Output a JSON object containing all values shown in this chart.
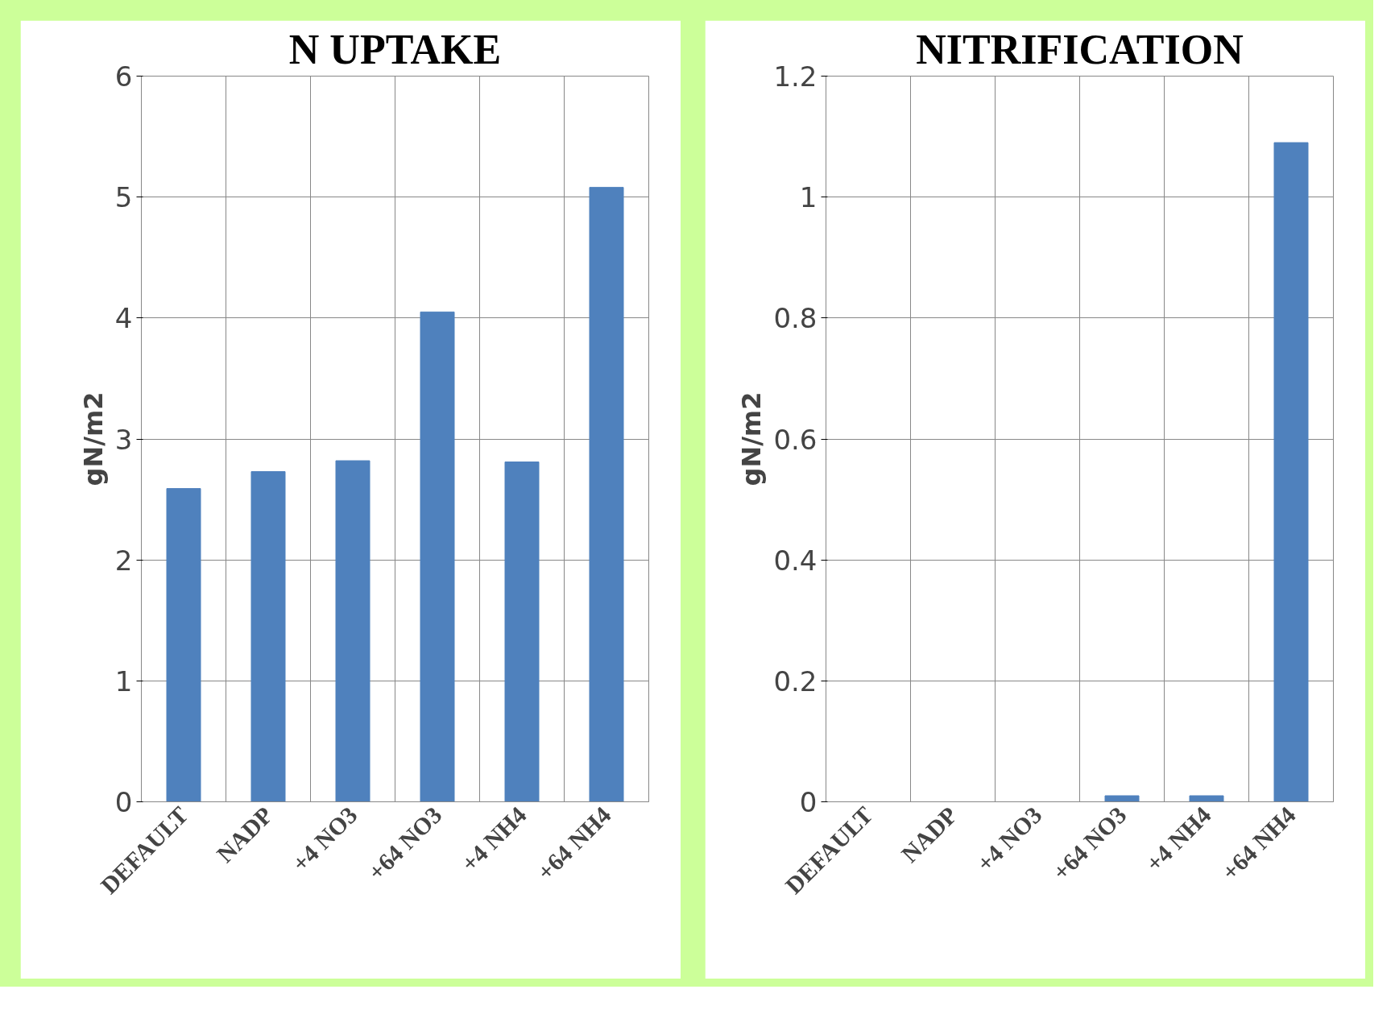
{
  "chart_data": [
    {
      "type": "bar",
      "title": "N UPTAKE",
      "ylabel": "gN/m2",
      "categories": [
        "DEFAULT",
        "NADP",
        "+4 NO3",
        "+64 NO3",
        "+4 NH4",
        "+64 NH4"
      ],
      "values": [
        2.59,
        2.73,
        2.82,
        4.05,
        2.81,
        5.08
      ],
      "color": "#4f81bd",
      "ylim": [
        0,
        6
      ],
      "yticks": [
        0,
        1,
        2,
        3,
        4,
        5,
        6
      ],
      "grid": true
    },
    {
      "type": "bar",
      "title": "NITRIFICATION",
      "ylabel": "gN/m2",
      "categories": [
        "DEFAULT",
        "NADP",
        "+4 NO3",
        "+64 NO3",
        "+4 NH4",
        "+64 NH4"
      ],
      "values": [
        0,
        0,
        0,
        0.01,
        0.01,
        1.09
      ],
      "color": "#4f81bd",
      "ylim": [
        0,
        1.2
      ],
      "yticks": [
        0,
        0.2,
        0.4,
        0.6,
        0.8,
        1,
        1.2
      ],
      "grid": true
    }
  ]
}
